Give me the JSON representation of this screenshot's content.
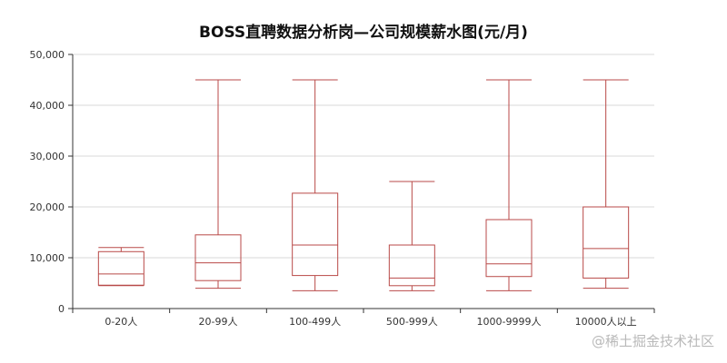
{
  "chart_data": {
    "type": "boxplot",
    "title": "BOSS直聘数据分析岗—公司规模薪水图(元/月)",
    "categories": [
      "0-20人",
      "20-99人",
      "100-499人",
      "500-999人",
      "1000-9999人",
      "10000人以上"
    ],
    "boxes": [
      {
        "min": 4500,
        "q1": 4600,
        "median": 6800,
        "q3": 11200,
        "max": 12000
      },
      {
        "min": 4000,
        "q1": 5500,
        "median": 9000,
        "q3": 14500,
        "max": 45000
      },
      {
        "min": 3500,
        "q1": 6500,
        "median": 12500,
        "q3": 22700,
        "max": 45000
      },
      {
        "min": 3500,
        "q1": 4500,
        "median": 6000,
        "q3": 12500,
        "max": 25000
      },
      {
        "min": 3500,
        "q1": 6300,
        "median": 8800,
        "q3": 17500,
        "max": 45000
      },
      {
        "min": 4000,
        "q1": 6000,
        "median": 11800,
        "q3": 20000,
        "max": 45000
      }
    ],
    "ylim": [
      0,
      50000
    ],
    "yticks": [
      "0",
      "10,000",
      "20,000",
      "30,000",
      "40,000",
      "50,000"
    ],
    "grid": true,
    "color": "#b94a48"
  },
  "watermark": "@稀土掘金技术社区"
}
